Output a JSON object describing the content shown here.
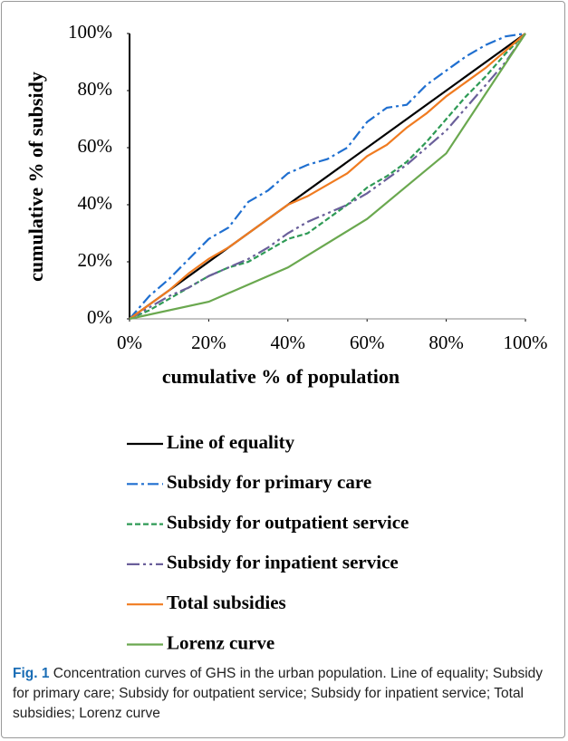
{
  "chart_data": {
    "type": "line",
    "xlabel": "cumulative % of population",
    "ylabel": "cumulative % of subsidy",
    "xlim": [
      0,
      100
    ],
    "ylim": [
      0,
      100
    ],
    "xticks": [
      {
        "value": 0,
        "label": "0%"
      },
      {
        "value": 20,
        "label": "20%"
      },
      {
        "value": 40,
        "label": "40%"
      },
      {
        "value": 60,
        "label": "60%"
      },
      {
        "value": 80,
        "label": "80%"
      },
      {
        "value": 100,
        "label": "100%"
      }
    ],
    "yticks": [
      {
        "value": 0,
        "label": "0%"
      },
      {
        "value": 20,
        "label": "20%"
      },
      {
        "value": 40,
        "label": "40%"
      },
      {
        "value": 60,
        "label": "60%"
      },
      {
        "value": 80,
        "label": "80%"
      },
      {
        "value": 100,
        "label": "100%"
      }
    ],
    "legend": "bottom",
    "series": [
      {
        "name": "Line of equality",
        "color": "#000000",
        "dash": "solid",
        "x": [
          0,
          100
        ],
        "values": [
          0,
          100
        ]
      },
      {
        "name": "Subsidy for primary care",
        "color": "#1f6fd0",
        "dash": "dashdot",
        "x": [
          0,
          5,
          10,
          15,
          20,
          25,
          30,
          35,
          40,
          45,
          50,
          55,
          60,
          65,
          70,
          75,
          80,
          85,
          90,
          95,
          100
        ],
        "values": [
          0,
          8,
          14,
          21,
          28,
          32,
          41,
          45,
          51,
          54,
          56,
          60,
          69,
          74,
          75,
          82,
          87,
          92,
          96,
          99,
          100
        ]
      },
      {
        "name": "Subsidy for outpatient service",
        "color": "#2e9a55",
        "dash": "dashed",
        "x": [
          0,
          5,
          10,
          15,
          20,
          25,
          30,
          35,
          40,
          45,
          50,
          55,
          60,
          65,
          70,
          75,
          80,
          85,
          90,
          95,
          100
        ],
        "values": [
          0,
          3,
          7,
          11,
          15,
          18,
          20,
          24,
          28,
          30,
          35,
          40,
          46,
          50,
          55,
          62,
          70,
          78,
          85,
          93,
          100
        ]
      },
      {
        "name": "Subsidy for inpatient service",
        "color": "#6a5f9a",
        "dash": "dashdotdot",
        "x": [
          0,
          5,
          10,
          15,
          20,
          25,
          30,
          35,
          40,
          45,
          50,
          55,
          60,
          65,
          70,
          75,
          80,
          85,
          90,
          95,
          100
        ],
        "values": [
          0,
          4,
          8,
          11,
          15,
          18,
          21,
          25,
          30,
          34,
          37,
          40,
          44,
          49,
          54,
          60,
          66,
          74,
          82,
          90,
          100
        ]
      },
      {
        "name": "Total subsidies",
        "color": "#f07b20",
        "dash": "solid",
        "x": [
          0,
          5,
          10,
          15,
          20,
          25,
          30,
          35,
          40,
          45,
          50,
          55,
          60,
          65,
          70,
          75,
          80,
          85,
          90,
          95,
          100
        ],
        "values": [
          0,
          5,
          10,
          16,
          21,
          25,
          30,
          35,
          40,
          43,
          47,
          51,
          57,
          61,
          67,
          72,
          78,
          83,
          88,
          94,
          100
        ]
      },
      {
        "name": "Lorenz curve",
        "color": "#6aa84f",
        "dash": "solid",
        "x": [
          0,
          20,
          40,
          60,
          80,
          100
        ],
        "values": [
          0,
          6,
          18,
          35,
          58,
          100
        ]
      }
    ]
  },
  "caption": {
    "label": "Fig. 1",
    "text": "Concentration curves of GHS in the urban population. Line of equality; Subsidy for primary care; Subsidy for outpatient service; Subsidy for inpatient service; Total subsidies; Lorenz curve"
  }
}
